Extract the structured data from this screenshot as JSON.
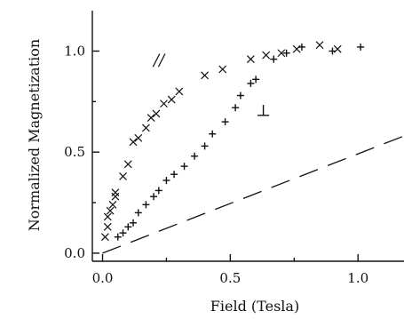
{
  "chart_data": {
    "type": "scatter",
    "xlabel": "Field (Tesla)",
    "ylabel": "Normalized Magnetization",
    "xlim": [
      -0.04,
      1.18
    ],
    "ylim": [
      -0.04,
      1.2
    ],
    "xticks": [
      {
        "value": 0.0,
        "label": "0.0"
      },
      {
        "value": 0.5,
        "label": "0.5"
      },
      {
        "value": 1.0,
        "label": "1.0"
      }
    ],
    "yticks": [
      {
        "value": 0.0,
        "label": "0.0"
      },
      {
        "value": 0.5,
        "label": "0.5"
      },
      {
        "value": 1.0,
        "label": "1.0"
      }
    ],
    "grid": false,
    "annotations": [
      {
        "text": "//",
        "x": 0.2,
        "y": 0.93
      },
      {
        "text": "⊥",
        "x": 0.6,
        "y": 0.68
      }
    ],
    "series": [
      {
        "marker": "x",
        "x": [
          0.01,
          0.02,
          0.02,
          0.03,
          0.04,
          0.05,
          0.05,
          0.08,
          0.1,
          0.12,
          0.14,
          0.17,
          0.19,
          0.21,
          0.24,
          0.27,
          0.3,
          0.4,
          0.47,
          0.58,
          0.64,
          0.7,
          0.76,
          0.85,
          0.92
        ],
        "y": [
          0.08,
          0.13,
          0.18,
          0.21,
          0.24,
          0.28,
          0.3,
          0.38,
          0.44,
          0.55,
          0.57,
          0.62,
          0.67,
          0.69,
          0.74,
          0.76,
          0.8,
          0.88,
          0.91,
          0.96,
          0.98,
          0.99,
          1.01,
          1.03,
          1.01
        ]
      },
      {
        "marker": "+",
        "x": [
          0.06,
          0.08,
          0.1,
          0.12,
          0.14,
          0.17,
          0.2,
          0.22,
          0.25,
          0.28,
          0.32,
          0.36,
          0.4,
          0.43,
          0.48,
          0.52,
          0.54,
          0.58,
          0.6,
          0.67,
          0.72,
          0.78,
          0.9,
          1.01
        ],
        "y": [
          0.08,
          0.1,
          0.13,
          0.15,
          0.2,
          0.24,
          0.28,
          0.31,
          0.36,
          0.39,
          0.43,
          0.48,
          0.53,
          0.59,
          0.65,
          0.72,
          0.78,
          0.84,
          0.86,
          0.96,
          0.99,
          1.02,
          1.0,
          1.02
        ]
      },
      {
        "marker": "dashed-line",
        "x": [
          0.0,
          1.18
        ],
        "y": [
          0.0,
          0.58
        ]
      }
    ]
  }
}
